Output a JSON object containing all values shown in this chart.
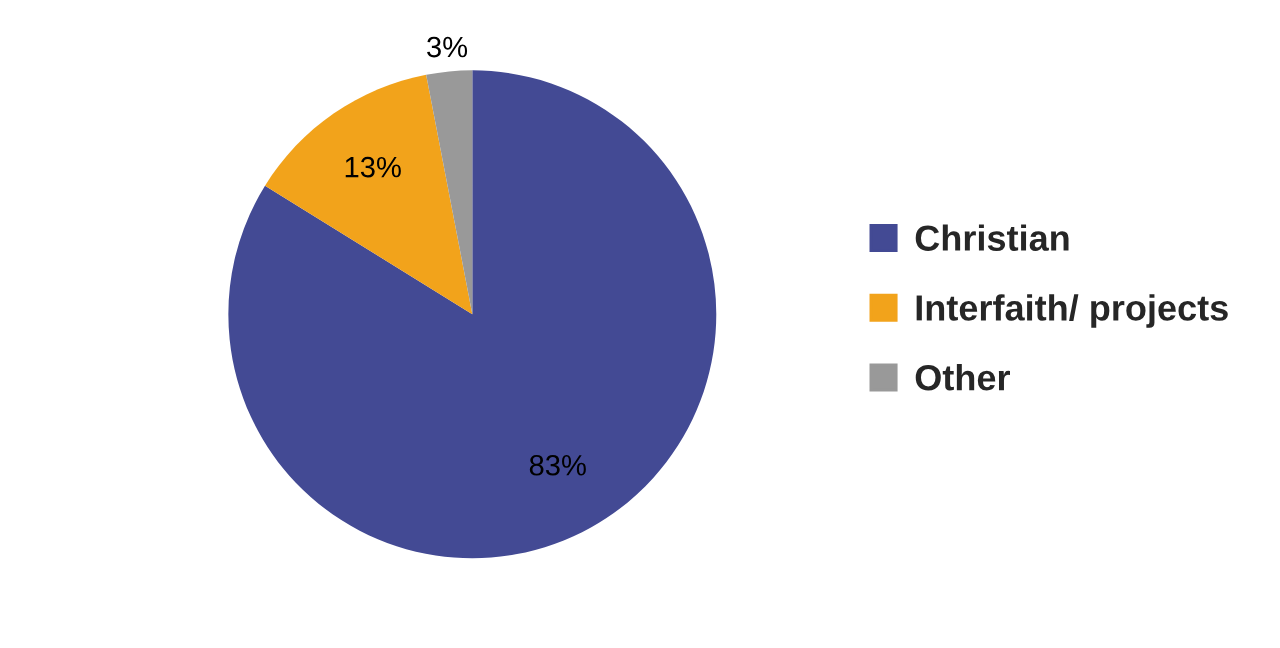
{
  "chart_data": {
    "type": "pie",
    "categories": [
      "Christian",
      "Interfaith/ projects",
      "Other"
    ],
    "values": [
      83,
      13,
      3
    ],
    "value_labels": [
      "83%",
      "13%",
      "3%"
    ],
    "colors": [
      "#434a94",
      "#f2a31b",
      "#999999"
    ],
    "legend": "right"
  }
}
